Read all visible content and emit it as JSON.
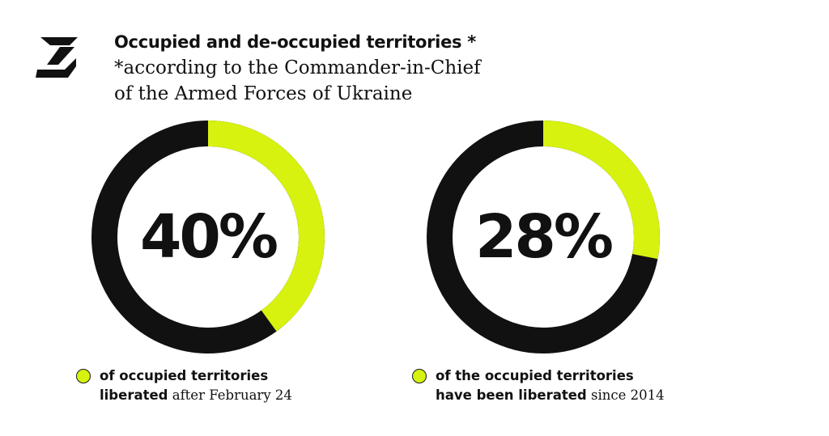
{
  "colors": {
    "accent": "#d6f20e",
    "dark": "#111111",
    "background": "#ffffff"
  },
  "header": {
    "title": "Occupied and de-occupied territories *",
    "subtitle_lines": [
      "*according to the Commander-in-Chief",
      "of the Armed Forces of Ukraine"
    ]
  },
  "chart_data": [
    {
      "type": "pie",
      "values": [
        40,
        60
      ],
      "center_label": "40%",
      "legend": {
        "bold_line1": "of occupied territories",
        "bold_line2": "liberated",
        "regular_line2": " after February 24"
      }
    },
    {
      "type": "pie",
      "values": [
        28,
        72
      ],
      "center_label": "28%",
      "legend": {
        "bold_line1": "of the occupied territories",
        "bold_line2": "have been liberated",
        "regular_line2": " since 2014"
      }
    }
  ]
}
